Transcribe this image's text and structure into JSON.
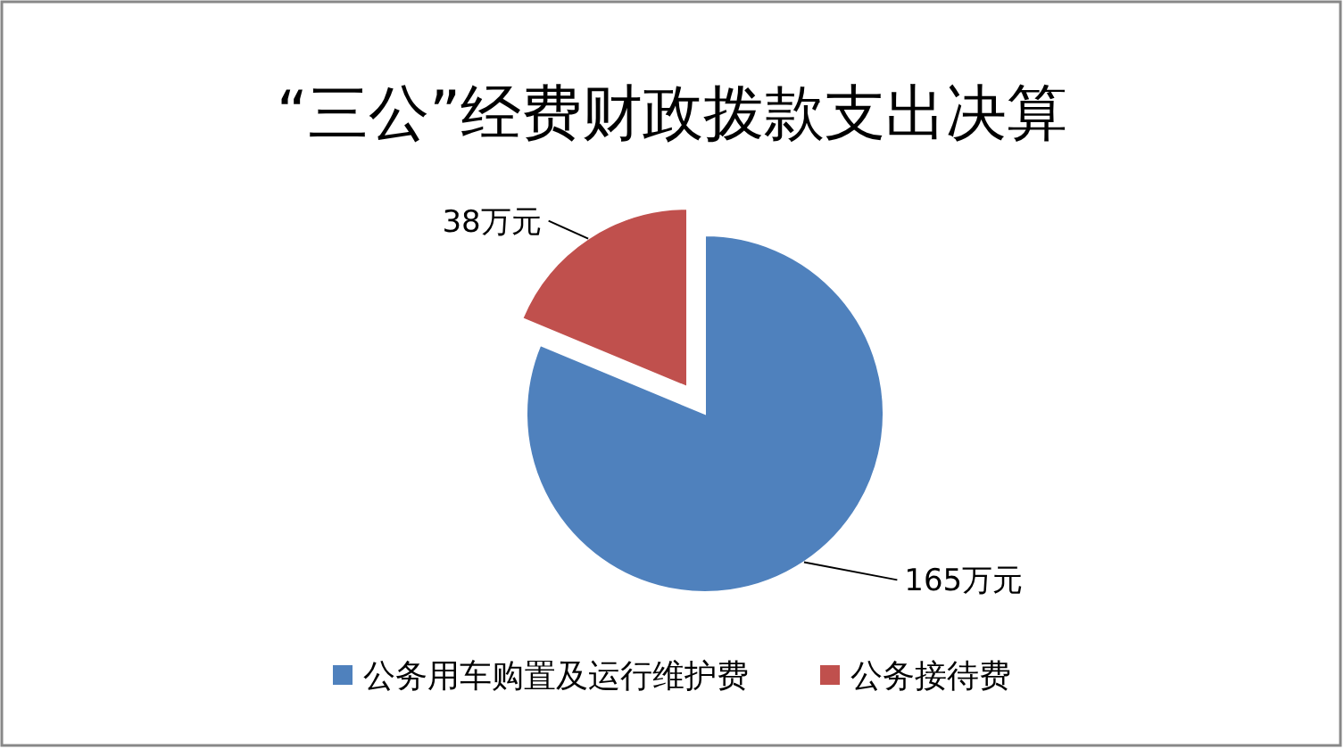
{
  "chart_data": {
    "type": "pie",
    "title": "“三公”经费财政拨款支出决算",
    "categories": [
      "公务用车购置及运行维护费",
      "公务接待费"
    ],
    "values": [
      165,
      38
    ],
    "colors": [
      "#4f81bd",
      "#c0504d"
    ],
    "value_labels": [
      "165万元",
      "38万元"
    ],
    "legend": "bottom"
  }
}
